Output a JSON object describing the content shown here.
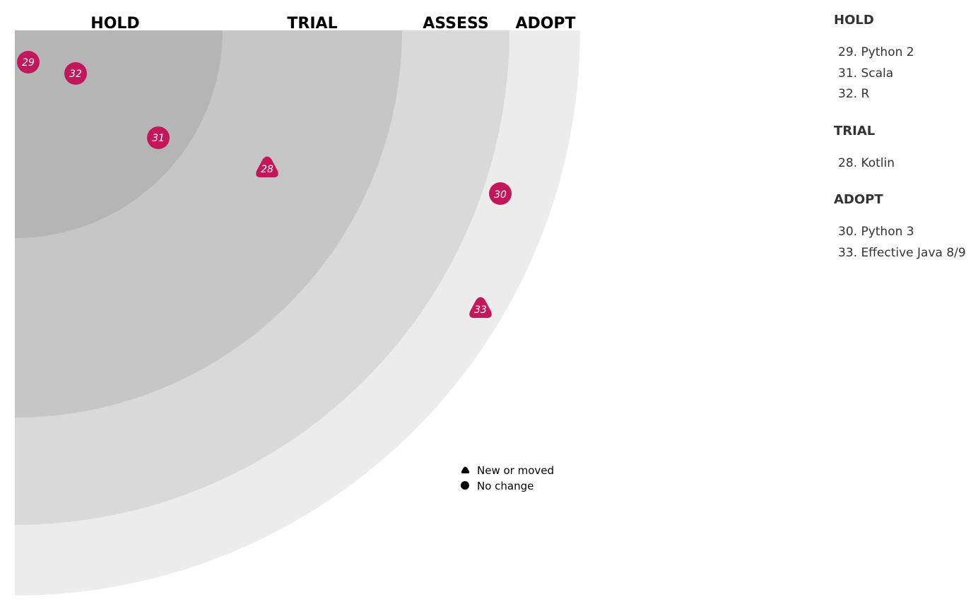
{
  "chart_data": {
    "type": "radar",
    "rings": [
      "HOLD",
      "TRIAL",
      "ASSESS",
      "ADOPT"
    ],
    "ring_colors": [
      "#b5b5b5",
      "#c6c6c6",
      "#d9d9d9",
      "#ececec"
    ],
    "blip_color": "#c2185b",
    "blips": [
      {
        "id": "29",
        "shape": "circle"
      },
      {
        "id": "32",
        "shape": "circle"
      },
      {
        "id": "31",
        "shape": "circle"
      },
      {
        "id": "28",
        "shape": "triangle"
      },
      {
        "id": "30",
        "shape": "circle"
      },
      {
        "id": "33",
        "shape": "triangle"
      }
    ],
    "legend": [
      {
        "shape": "triangle",
        "label": "New or moved"
      },
      {
        "shape": "circle",
        "label": "No change"
      }
    ]
  },
  "sidebar": [
    {
      "title": "HOLD",
      "items": [
        "29. Python 2",
        "31. Scala",
        "32. R"
      ]
    },
    {
      "title": "TRIAL",
      "items": [
        "28. Kotlin"
      ]
    },
    {
      "title": "ADOPT",
      "items": [
        "30. Python 3",
        "33. Effective Java 8/9"
      ]
    }
  ]
}
